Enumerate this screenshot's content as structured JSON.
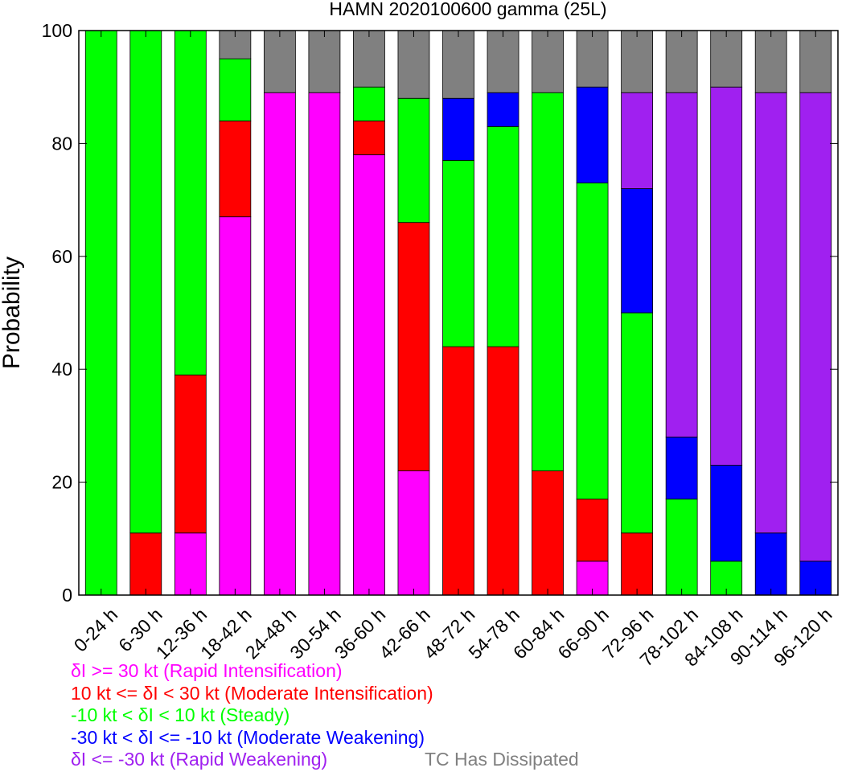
{
  "chart_data": {
    "type": "bar",
    "stacked": true,
    "title": "HAMN 2020100600 gamma (25L)",
    "xlabel": "",
    "ylabel": "Probability",
    "ylim": [
      0,
      100
    ],
    "yticks": [
      "0",
      "20",
      "40",
      "60",
      "80",
      "100"
    ],
    "grid": false,
    "categories": [
      "0-24 h",
      "6-30 h",
      "12-36 h",
      "18-42 h",
      "24-48 h",
      "30-54 h",
      "36-60 h",
      "42-66 h",
      "48-72 h",
      "54-78 h",
      "60-84 h",
      "66-90 h",
      "72-96 h",
      "78-102 h",
      "84-108 h",
      "90-114 h",
      "96-120 h"
    ],
    "series": [
      {
        "name": "δI >= 30 kt (Rapid Intensification)",
        "color": "#ff00ff",
        "values": [
          0,
          0,
          11,
          67,
          89,
          89,
          78,
          22,
          0,
          0,
          0,
          6,
          0,
          0,
          0,
          0,
          0
        ]
      },
      {
        "name": "10 kt <= δI < 30 kt (Moderate Intensification)",
        "color": "#ff0000",
        "values": [
          0,
          11,
          28,
          17,
          0,
          0,
          6,
          44,
          44,
          44,
          22,
          11,
          11,
          0,
          0,
          0,
          0
        ]
      },
      {
        "name": "-10 kt < δI < 10 kt (Steady)",
        "color": "#00ff00",
        "values": [
          100,
          89,
          61,
          11,
          0,
          0,
          6,
          22,
          33,
          39,
          67,
          56,
          39,
          17,
          6,
          0,
          0
        ]
      },
      {
        "name": "-30 kt < δI <= -10 kt (Moderate Weakening)",
        "color": "#0000ff",
        "values": [
          0,
          0,
          0,
          0,
          0,
          0,
          0,
          0,
          11,
          6,
          0,
          17,
          22,
          11,
          17,
          11,
          6
        ]
      },
      {
        "name": "δI <= -30 kt (Rapid Weakening)",
        "color": "#a020f0",
        "values": [
          0,
          0,
          0,
          0,
          0,
          0,
          0,
          0,
          0,
          0,
          0,
          0,
          17,
          61,
          67,
          78,
          83
        ]
      },
      {
        "name": "TC Has Dissipated",
        "color": "#808080",
        "values": [
          0,
          0,
          0,
          5,
          11,
          11,
          10,
          12,
          12,
          11,
          11,
          10,
          11,
          11,
          10,
          11,
          11
        ]
      }
    ]
  }
}
